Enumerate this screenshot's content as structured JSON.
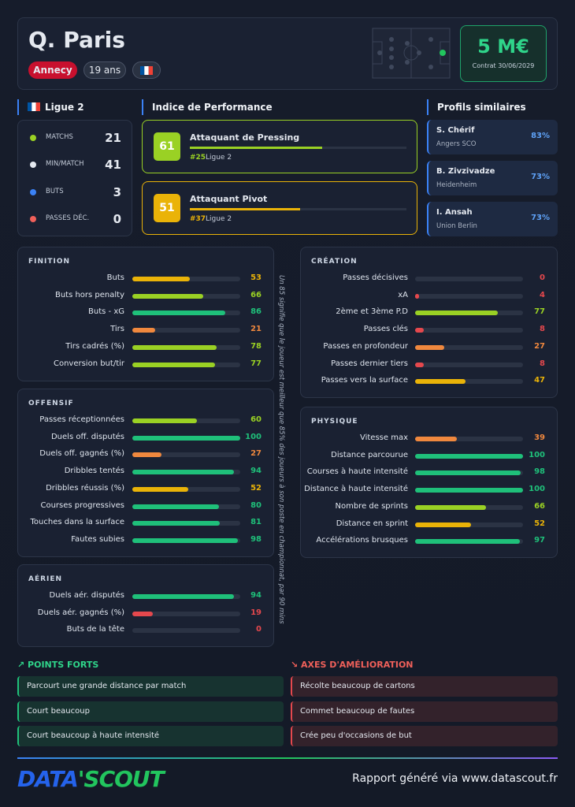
{
  "header": {
    "name": "Q. Paris",
    "club": "Annecy",
    "age": "19 ans",
    "market_value": "5 M€",
    "contract": "Contrat 30/06/2029"
  },
  "league": {
    "title": "Ligue 2",
    "stats": [
      {
        "label": "MATCHS",
        "value": 21
      },
      {
        "label": "MIN/MATCH",
        "value": 41
      },
      {
        "label": "BUTS",
        "value": 3
      },
      {
        "label": "PASSES DÉC.",
        "value": 0
      }
    ]
  },
  "performance": {
    "title": "Indice de Performance",
    "items": [
      {
        "score": 61,
        "role": "Attaquant de Pressing",
        "rank": "#25",
        "league": "Ligue 2"
      },
      {
        "score": 51,
        "role": "Attaquant Pivot",
        "rank": "#37",
        "league": "Ligue 2"
      }
    ]
  },
  "similar": {
    "title": "Profils similaires",
    "items": [
      {
        "name": "S. Chérif",
        "club": "Angers SCO",
        "match": "83%"
      },
      {
        "name": "B. Zivzivadze",
        "club": "Heidenheim",
        "match": "73%"
      },
      {
        "name": "I. Ansah",
        "club": "Union Berlin",
        "match": "73%"
      }
    ]
  },
  "sections": [
    {
      "title": "FINITION",
      "rows": [
        {
          "label": "Buts",
          "value": 53
        },
        {
          "label": "Buts hors penalty",
          "value": 66
        },
        {
          "label": "Buts - xG",
          "value": 86
        },
        {
          "label": "Tirs",
          "value": 21
        },
        {
          "label": "Tirs cadrés (%)",
          "value": 78
        },
        {
          "label": "Conversion but/tir",
          "value": 77
        }
      ]
    },
    {
      "title": "OFFENSIF",
      "rows": [
        {
          "label": "Passes réceptionnées",
          "value": 60
        },
        {
          "label": "Duels off. disputés",
          "value": 100
        },
        {
          "label": "Duels off. gagnés (%)",
          "value": 27
        },
        {
          "label": "Dribbles tentés",
          "value": 94
        },
        {
          "label": "Dribbles réussis (%)",
          "value": 52
        },
        {
          "label": "Courses progressives",
          "value": 80
        },
        {
          "label": "Touches dans la surface",
          "value": 81
        },
        {
          "label": "Fautes subies",
          "value": 98
        }
      ]
    },
    {
      "title": "AÉRIEN",
      "rows": [
        {
          "label": "Duels aér. disputés",
          "value": 94
        },
        {
          "label": "Duels aér. gagnés (%)",
          "value": 19
        },
        {
          "label": "Buts de la tête",
          "value": 0
        }
      ]
    },
    {
      "title": "CRÉATION",
      "rows": [
        {
          "label": "Passes décisives",
          "value": 0
        },
        {
          "label": "xA",
          "value": 4
        },
        {
          "label": "2ème et 3ème P.D",
          "value": 77
        },
        {
          "label": "Passes clés",
          "value": 8
        },
        {
          "label": "Passes en profondeur",
          "value": 27
        },
        {
          "label": "Passes dernier tiers",
          "value": 8
        },
        {
          "label": "Passes vers la surface",
          "value": 47
        }
      ]
    },
    {
      "title": "PHYSIQUE",
      "rows": [
        {
          "label": "Vitesse max",
          "value": 39
        },
        {
          "label": "Distance parcourue",
          "value": 100
        },
        {
          "label": "Courses à haute intensité",
          "value": 98
        },
        {
          "label": "Distance à haute intensité",
          "value": 100
        },
        {
          "label": "Nombre de sprints",
          "value": 66
        },
        {
          "label": "Distance en sprint",
          "value": 52
        },
        {
          "label": "Accélérations brusques",
          "value": 97
        }
      ]
    }
  ],
  "note": "Un 85 signifie que le joueur est meilleur que 85% des joueurs à son poste en championnat, par 90 mins",
  "strengths": {
    "title": "POINTS FORTS",
    "items": [
      "Parcourt une grande distance par match",
      "Court beaucoup",
      "Court beaucoup à haute intensité"
    ]
  },
  "improvements": {
    "title": "AXES D'AMÉLIORATION",
    "items": [
      "Récolte beaucoup de cartons",
      "Commet beaucoup de fautes",
      "Crée peu d'occasions de but"
    ]
  },
  "footer": {
    "logo_a": "DATA",
    "logo_b": "'SCOUT",
    "text": "Rapport généré via www.datascout.fr"
  }
}
